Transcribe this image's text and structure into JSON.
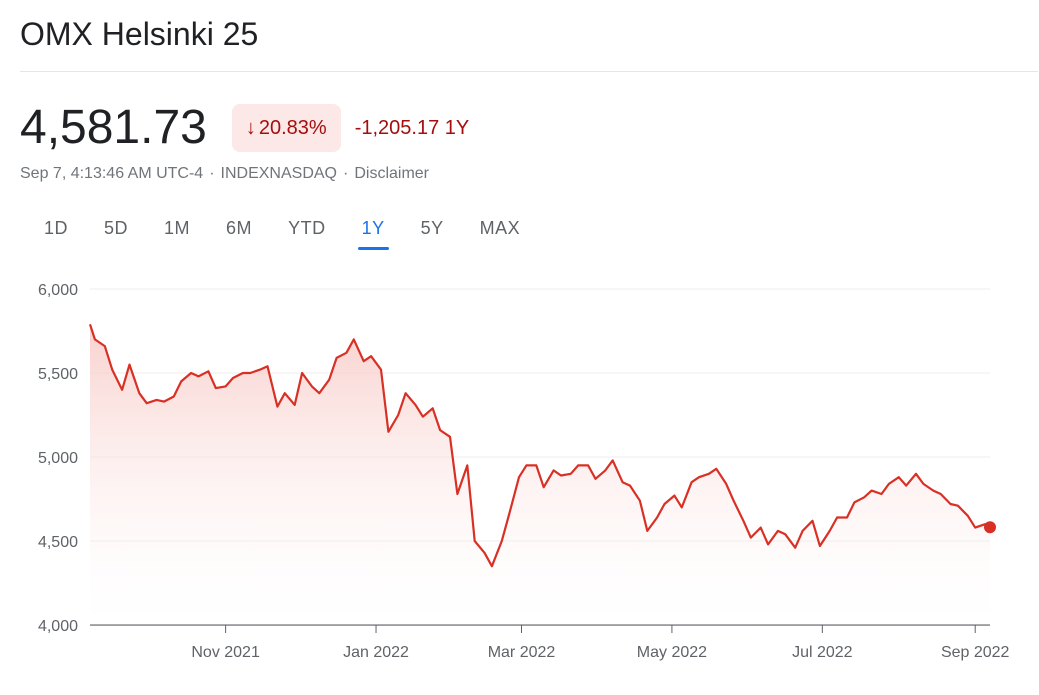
{
  "header": {
    "title": "OMX Helsinki 25"
  },
  "quote": {
    "price": "4,581.73",
    "change_percent": "20.83%",
    "change_value": "-1,205.17",
    "change_period": "1Y",
    "direction_icon": "arrow-down-icon"
  },
  "meta": {
    "timestamp": "Sep 7, 4:13:46 AM UTC-4",
    "exchange": "INDEXNASDAQ",
    "disclaimer": "Disclaimer",
    "separator": "·"
  },
  "tabs": [
    {
      "label": "1D",
      "active": false
    },
    {
      "label": "5D",
      "active": false
    },
    {
      "label": "1M",
      "active": false
    },
    {
      "label": "6M",
      "active": false
    },
    {
      "label": "YTD",
      "active": false
    },
    {
      "label": "1Y",
      "active": true
    },
    {
      "label": "5Y",
      "active": false
    },
    {
      "label": "MAX",
      "active": false
    }
  ],
  "colors": {
    "line": "#d93025",
    "fill_top": "#f7c9c5",
    "grid": "#ececec",
    "axis": "#5f6368",
    "negative": "#a50e0e",
    "badge_bg": "#fce8e6",
    "active_tab": "#1a73e8"
  },
  "chart_data": {
    "type": "area",
    "title": "",
    "xlabel": "",
    "ylabel": "",
    "ylim": [
      4000,
      6000
    ],
    "yticks": [
      6000,
      5500,
      5000,
      4500,
      4000
    ],
    "ytick_labels": [
      "6,000",
      "5,500",
      "5,000",
      "4,500",
      "4,000"
    ],
    "xlim": [
      "2021-09-07",
      "2022-09-07"
    ],
    "xticks": [
      {
        "date": "2021-11-01",
        "label": "Nov 2021"
      },
      {
        "date": "2022-01-01",
        "label": "Jan 2022"
      },
      {
        "date": "2022-03-01",
        "label": "Mar 2022"
      },
      {
        "date": "2022-05-01",
        "label": "May 2022"
      },
      {
        "date": "2022-07-01",
        "label": "Jul 2022"
      },
      {
        "date": "2022-09-01",
        "label": "Sep 2022"
      }
    ],
    "grid": true,
    "series": [
      {
        "x": [
          "2021-09-07",
          "2021-09-09",
          "2021-09-13",
          "2021-09-16",
          "2021-09-20",
          "2021-09-23",
          "2021-09-27",
          "2021-09-30",
          "2021-10-04",
          "2021-10-07",
          "2021-10-11",
          "2021-10-14",
          "2021-10-18",
          "2021-10-21",
          "2021-10-25",
          "2021-10-28",
          "2021-11-01",
          "2021-11-04",
          "2021-11-08",
          "2021-11-11",
          "2021-11-15",
          "2021-11-18",
          "2021-11-22",
          "2021-11-25",
          "2021-11-29",
          "2021-12-02",
          "2021-12-06",
          "2021-12-09",
          "2021-12-13",
          "2021-12-16",
          "2021-12-20",
          "2021-12-23",
          "2021-12-27",
          "2021-12-30",
          "2022-01-03",
          "2022-01-06",
          "2022-01-10",
          "2022-01-13",
          "2022-01-17",
          "2022-01-20",
          "2022-01-24",
          "2022-01-27",
          "2022-01-31",
          "2022-02-03",
          "2022-02-07",
          "2022-02-10",
          "2022-02-14",
          "2022-02-17",
          "2022-02-21",
          "2022-02-24",
          "2022-02-28",
          "2022-03-03",
          "2022-03-07",
          "2022-03-10",
          "2022-03-14",
          "2022-03-17",
          "2022-03-21",
          "2022-03-24",
          "2022-03-28",
          "2022-03-31",
          "2022-04-04",
          "2022-04-07",
          "2022-04-11",
          "2022-04-14",
          "2022-04-18",
          "2022-04-21",
          "2022-04-25",
          "2022-04-28",
          "2022-05-02",
          "2022-05-05",
          "2022-05-09",
          "2022-05-12",
          "2022-05-16",
          "2022-05-19",
          "2022-05-23",
          "2022-05-26",
          "2022-05-30",
          "2022-06-02",
          "2022-06-06",
          "2022-06-09",
          "2022-06-13",
          "2022-06-16",
          "2022-06-20",
          "2022-06-23",
          "2022-06-27",
          "2022-06-30",
          "2022-07-04",
          "2022-07-07",
          "2022-07-11",
          "2022-07-14",
          "2022-07-18",
          "2022-07-21",
          "2022-07-25",
          "2022-07-28",
          "2022-08-01",
          "2022-08-04",
          "2022-08-08",
          "2022-08-11",
          "2022-08-15",
          "2022-08-18",
          "2022-08-22",
          "2022-08-25",
          "2022-08-29",
          "2022-09-01",
          "2022-09-05",
          "2022-09-07"
        ],
        "y": [
          5790,
          5700,
          5660,
          5520,
          5400,
          5550,
          5380,
          5320,
          5340,
          5330,
          5360,
          5450,
          5500,
          5480,
          5510,
          5410,
          5420,
          5470,
          5500,
          5500,
          5520,
          5540,
          5300,
          5380,
          5310,
          5500,
          5420,
          5380,
          5460,
          5590,
          5620,
          5700,
          5570,
          5600,
          5520,
          5150,
          5250,
          5380,
          5310,
          5240,
          5290,
          5160,
          5120,
          4780,
          4950,
          4500,
          4430,
          4350,
          4500,
          4660,
          4880,
          4950,
          4950,
          4820,
          4920,
          4890,
          4900,
          4950,
          4950,
          4870,
          4920,
          4980,
          4850,
          4830,
          4740,
          4560,
          4640,
          4720,
          4770,
          4700,
          4850,
          4880,
          4900,
          4930,
          4840,
          4740,
          4620,
          4520,
          4580,
          4480,
          4560,
          4540,
          4460,
          4560,
          4620,
          4470,
          4560,
          4640,
          4640,
          4730,
          4760,
          4800,
          4780,
          4840,
          4880,
          4830,
          4900,
          4840,
          4800,
          4780,
          4720,
          4710,
          4650,
          4580,
          4600,
          4582
        ]
      }
    ],
    "last_value": 4581.73
  }
}
